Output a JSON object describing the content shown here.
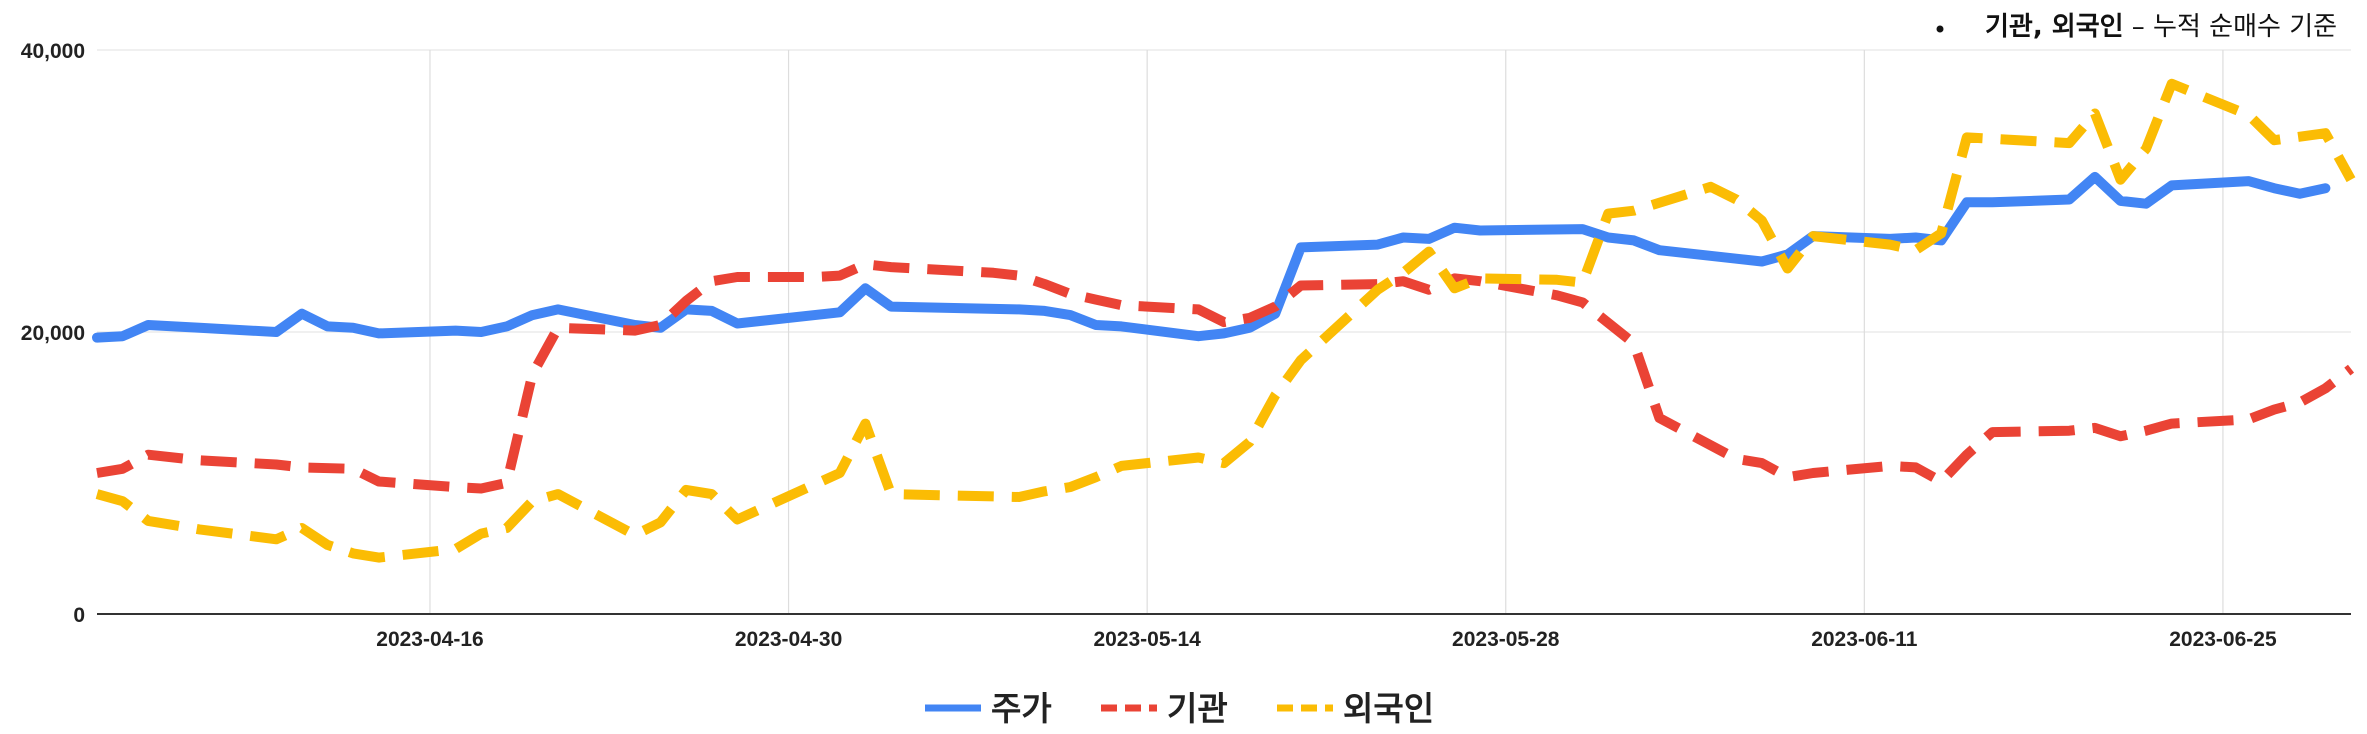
{
  "note": {
    "bold": "기관, 외국인",
    "rest": " – 누적 순매수 기준"
  },
  "chart_data": {
    "type": "line",
    "ylim": [
      0,
      40000
    ],
    "y_ticks": [
      0,
      20000,
      40000
    ],
    "y_tick_labels": [
      "0",
      "20,000",
      "40,000"
    ],
    "x_range": [
      "2023-04-03",
      "2023-06-30"
    ],
    "x_ticks": [
      "2023-04-16",
      "2023-04-30",
      "2023-05-14",
      "2023-05-28",
      "2023-06-11",
      "2023-06-25"
    ],
    "grid": true,
    "legend_position": "bottom",
    "series": [
      {
        "name": "주가",
        "color": "#4285F4",
        "style": "solid",
        "points": [
          [
            "2023-04-03",
            19600
          ],
          [
            "2023-04-04",
            19700
          ],
          [
            "2023-04-05",
            20500
          ],
          [
            "2023-04-07",
            20300
          ],
          [
            "2023-04-10",
            20000
          ],
          [
            "2023-04-11",
            21300
          ],
          [
            "2023-04-12",
            20400
          ],
          [
            "2023-04-13",
            20300
          ],
          [
            "2023-04-14",
            19900
          ],
          [
            "2023-04-17",
            20100
          ],
          [
            "2023-04-18",
            20000
          ],
          [
            "2023-04-19",
            20400
          ],
          [
            "2023-04-20",
            21200
          ],
          [
            "2023-04-21",
            21600
          ],
          [
            "2023-04-24",
            20500
          ],
          [
            "2023-04-25",
            20300
          ],
          [
            "2023-04-26",
            21600
          ],
          [
            "2023-04-27",
            21500
          ],
          [
            "2023-04-28",
            20600
          ],
          [
            "2023-05-02",
            21400
          ],
          [
            "2023-05-03",
            23100
          ],
          [
            "2023-05-04",
            21800
          ],
          [
            "2023-05-09",
            21600
          ],
          [
            "2023-05-10",
            21500
          ],
          [
            "2023-05-11",
            21200
          ],
          [
            "2023-05-12",
            20500
          ],
          [
            "2023-05-13",
            20400
          ],
          [
            "2023-05-16",
            19700
          ],
          [
            "2023-05-17",
            19900
          ],
          [
            "2023-05-18",
            20300
          ],
          [
            "2023-05-19",
            21300
          ],
          [
            "2023-05-20",
            26000
          ],
          [
            "2023-05-23",
            26200
          ],
          [
            "2023-05-24",
            26700
          ],
          [
            "2023-05-25",
            26600
          ],
          [
            "2023-05-26",
            27400
          ],
          [
            "2023-05-27",
            27200
          ],
          [
            "2023-05-31",
            27300
          ],
          [
            "2023-06-01",
            26700
          ],
          [
            "2023-06-02",
            26500
          ],
          [
            "2023-06-03",
            25800
          ],
          [
            "2023-06-06",
            25200
          ],
          [
            "2023-06-07",
            25000
          ],
          [
            "2023-06-08",
            25500
          ],
          [
            "2023-06-09",
            26800
          ],
          [
            "2023-06-12",
            26600
          ],
          [
            "2023-06-13",
            26700
          ],
          [
            "2023-06-14",
            26500
          ],
          [
            "2023-06-15",
            29200
          ],
          [
            "2023-06-16",
            29200
          ],
          [
            "2023-06-19",
            29400
          ],
          [
            "2023-06-20",
            31000
          ],
          [
            "2023-06-21",
            29300
          ],
          [
            "2023-06-22",
            29100
          ],
          [
            "2023-06-23",
            30400
          ],
          [
            "2023-06-26",
            30700
          ],
          [
            "2023-06-27",
            30200
          ],
          [
            "2023-06-28",
            29800
          ],
          [
            "2023-06-29",
            30200
          ]
        ]
      },
      {
        "name": "기관",
        "color": "#EA4335",
        "style": "dashed",
        "points": [
          [
            "2023-04-03",
            10000
          ],
          [
            "2023-04-04",
            10300
          ],
          [
            "2023-04-05",
            11300
          ],
          [
            "2023-04-07",
            10900
          ],
          [
            "2023-04-10",
            10600
          ],
          [
            "2023-04-11",
            10400
          ],
          [
            "2023-04-13",
            10300
          ],
          [
            "2023-04-14",
            9400
          ],
          [
            "2023-04-17",
            9000
          ],
          [
            "2023-04-18",
            8900
          ],
          [
            "2023-04-19",
            9300
          ],
          [
            "2023-04-20",
            17000
          ],
          [
            "2023-04-21",
            20300
          ],
          [
            "2023-04-24",
            20100
          ],
          [
            "2023-04-25",
            20500
          ],
          [
            "2023-04-26",
            22200
          ],
          [
            "2023-04-27",
            23600
          ],
          [
            "2023-04-28",
            23900
          ],
          [
            "2023-05-01",
            23900
          ],
          [
            "2023-05-02",
            24000
          ],
          [
            "2023-05-03",
            24800
          ],
          [
            "2023-05-04",
            24600
          ],
          [
            "2023-05-08",
            24200
          ],
          [
            "2023-05-09",
            24000
          ],
          [
            "2023-05-10",
            23400
          ],
          [
            "2023-05-11",
            22700
          ],
          [
            "2023-05-12",
            22300
          ],
          [
            "2023-05-13",
            21900
          ],
          [
            "2023-05-16",
            21600
          ],
          [
            "2023-05-17",
            20700
          ],
          [
            "2023-05-18",
            21000
          ],
          [
            "2023-05-19",
            21800
          ],
          [
            "2023-05-20",
            23300
          ],
          [
            "2023-05-23",
            23400
          ],
          [
            "2023-05-24",
            23600
          ],
          [
            "2023-05-25",
            23000
          ],
          [
            "2023-05-26",
            23800
          ],
          [
            "2023-05-27",
            23600
          ],
          [
            "2023-05-30",
            22600
          ],
          [
            "2023-05-31",
            22100
          ],
          [
            "2023-06-02",
            19200
          ],
          [
            "2023-06-03",
            13900
          ],
          [
            "2023-06-06",
            11000
          ],
          [
            "2023-06-07",
            10700
          ],
          [
            "2023-06-08",
            9700
          ],
          [
            "2023-06-09",
            10000
          ],
          [
            "2023-06-12",
            10500
          ],
          [
            "2023-06-13",
            10400
          ],
          [
            "2023-06-14",
            9400
          ],
          [
            "2023-06-15",
            11300
          ],
          [
            "2023-06-16",
            12900
          ],
          [
            "2023-06-19",
            13000
          ],
          [
            "2023-06-20",
            13200
          ],
          [
            "2023-06-21",
            12600
          ],
          [
            "2023-06-22",
            13000
          ],
          [
            "2023-06-23",
            13500
          ],
          [
            "2023-06-26",
            13800
          ],
          [
            "2023-06-27",
            14500
          ],
          [
            "2023-06-28",
            15000
          ],
          [
            "2023-06-29",
            16000
          ],
          [
            "2023-06-30",
            17400
          ]
        ]
      },
      {
        "name": "외국인",
        "color": "#FBBC04",
        "style": "dashed",
        "points": [
          [
            "2023-04-03",
            8500
          ],
          [
            "2023-04-04",
            8000
          ],
          [
            "2023-04-05",
            6600
          ],
          [
            "2023-04-07",
            6000
          ],
          [
            "2023-04-10",
            5300
          ],
          [
            "2023-04-11",
            6100
          ],
          [
            "2023-04-12",
            4900
          ],
          [
            "2023-04-13",
            4300
          ],
          [
            "2023-04-14",
            4000
          ],
          [
            "2023-04-17",
            4600
          ],
          [
            "2023-04-18",
            5700
          ],
          [
            "2023-04-19",
            6100
          ],
          [
            "2023-04-20",
            8000
          ],
          [
            "2023-04-21",
            8500
          ],
          [
            "2023-04-24",
            5600
          ],
          [
            "2023-04-25",
            6500
          ],
          [
            "2023-04-26",
            8800
          ],
          [
            "2023-04-27",
            8500
          ],
          [
            "2023-04-28",
            6700
          ],
          [
            "2023-05-02",
            10000
          ],
          [
            "2023-05-03",
            13500
          ],
          [
            "2023-05-04",
            8500
          ],
          [
            "2023-05-09",
            8300
          ],
          [
            "2023-05-10",
            8700
          ],
          [
            "2023-05-11",
            9000
          ],
          [
            "2023-05-12",
            9700
          ],
          [
            "2023-05-13",
            10500
          ],
          [
            "2023-05-16",
            11100
          ],
          [
            "2023-05-17",
            10700
          ],
          [
            "2023-05-18",
            12200
          ],
          [
            "2023-05-19",
            15500
          ],
          [
            "2023-05-20",
            18000
          ],
          [
            "2023-05-23",
            23000
          ],
          [
            "2023-05-24",
            24200
          ],
          [
            "2023-05-25",
            25700
          ],
          [
            "2023-05-26",
            23100
          ],
          [
            "2023-05-27",
            23800
          ],
          [
            "2023-05-30",
            23700
          ],
          [
            "2023-05-31",
            23500
          ],
          [
            "2023-06-01",
            28400
          ],
          [
            "2023-06-02",
            28600
          ],
          [
            "2023-06-05",
            30300
          ],
          [
            "2023-06-06",
            29400
          ],
          [
            "2023-06-07",
            27900
          ],
          [
            "2023-06-08",
            24500
          ],
          [
            "2023-06-09",
            26800
          ],
          [
            "2023-06-12",
            26200
          ],
          [
            "2023-06-13",
            25800
          ],
          [
            "2023-06-14",
            27000
          ],
          [
            "2023-06-15",
            33800
          ],
          [
            "2023-06-16",
            33700
          ],
          [
            "2023-06-19",
            33400
          ],
          [
            "2023-06-20",
            35500
          ],
          [
            "2023-06-21",
            30800
          ],
          [
            "2023-06-22",
            33000
          ],
          [
            "2023-06-23",
            37600
          ],
          [
            "2023-06-26",
            35400
          ],
          [
            "2023-06-27",
            33600
          ],
          [
            "2023-06-29",
            34100
          ],
          [
            "2023-06-30",
            30800
          ]
        ]
      }
    ]
  }
}
